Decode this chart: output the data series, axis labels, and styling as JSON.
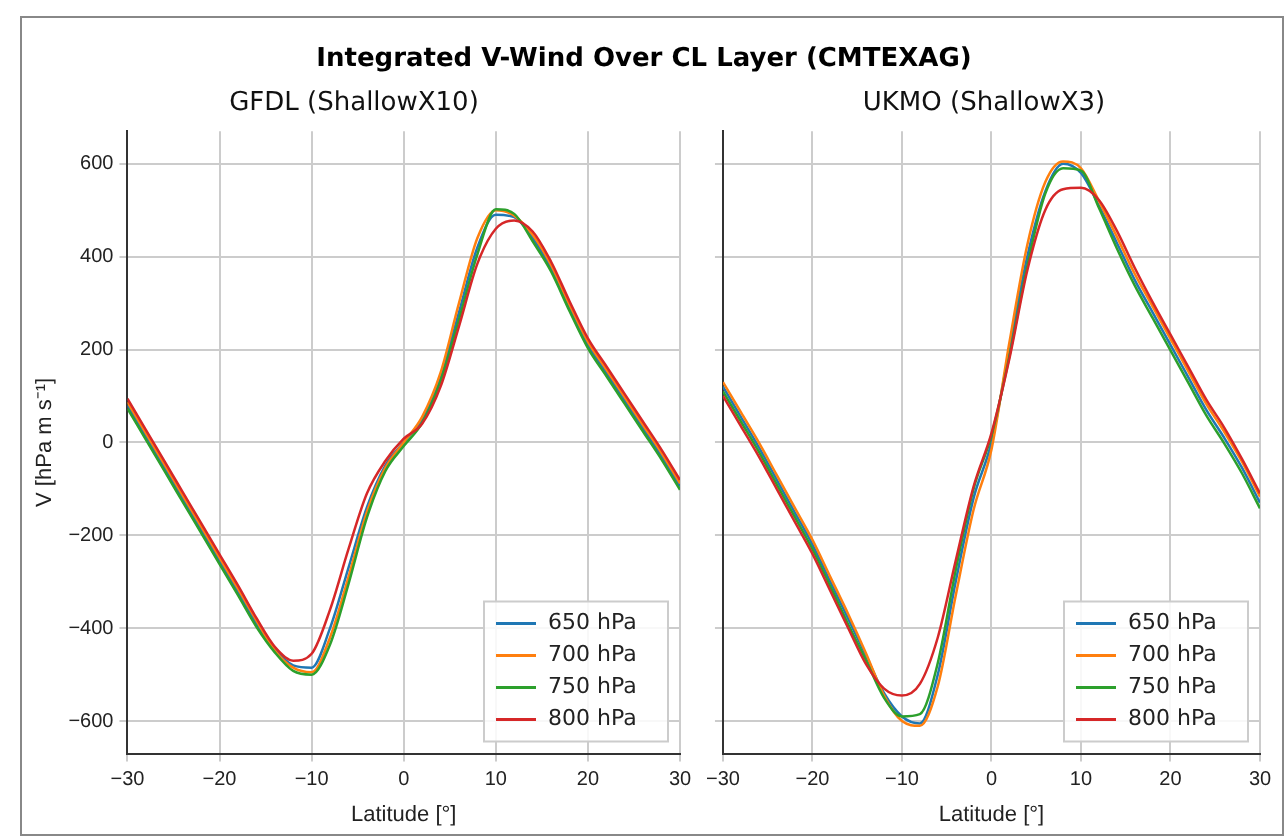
{
  "chart_data": [
    {
      "type": "line",
      "title": "GFDL (ShallowX10)",
      "annotations": [
        "Integrated V-Wind Over CL Layer (CMTEXAG)"
      ],
      "xlabel": "Latitude [°]",
      "ylabel": "V [hPa m s⁻¹]",
      "x": [
        -30,
        -28,
        -26,
        -24,
        -22,
        -20,
        -18,
        -16,
        -14,
        -12,
        -10,
        -8,
        -6,
        -4,
        -2,
        0,
        2,
        4,
        6,
        8,
        10,
        12,
        14,
        16,
        18,
        20,
        22,
        24,
        26,
        28,
        30
      ],
      "xlim": [
        -30,
        30
      ],
      "xticks": [
        -30,
        -20,
        -10,
        0,
        10,
        20,
        30
      ],
      "ylim": [
        -670,
        670
      ],
      "yticks": [
        -600,
        -400,
        -200,
        0,
        200,
        400,
        600
      ],
      "grid": true,
      "legend": "bottom right",
      "series": [
        {
          "name": "650 hPa",
          "color": "#1f77b4",
          "values": [
            80,
            13,
            -54,
            -121,
            -188,
            -255,
            -322,
            -390,
            -445,
            -480,
            -485,
            -400,
            -270,
            -140,
            -50,
            0,
            50,
            140,
            280,
            420,
            490,
            485,
            440,
            375,
            290,
            210,
            150,
            90,
            30,
            -30,
            -95
          ]
        },
        {
          "name": "700 hPa",
          "color": "#ff7f0e",
          "values": [
            87,
            20,
            -47,
            -114,
            -181,
            -248,
            -315,
            -383,
            -448,
            -485,
            -495,
            -420,
            -290,
            -150,
            -55,
            0,
            55,
            150,
            300,
            440,
            500,
            488,
            447,
            382,
            297,
            217,
            157,
            97,
            37,
            -23,
            -88
          ]
        },
        {
          "name": "750 hPa",
          "color": "#2ca02c",
          "values": [
            73,
            6,
            -61,
            -128,
            -195,
            -262,
            -329,
            -397,
            -452,
            -492,
            -500,
            -435,
            -305,
            -162,
            -62,
            -8,
            42,
            132,
            265,
            405,
            502,
            492,
            433,
            368,
            283,
            203,
            143,
            83,
            23,
            -37,
            -102
          ]
        },
        {
          "name": "800 hPa",
          "color": "#d62728",
          "values": [
            94,
            27,
            -40,
            -107,
            -174,
            -241,
            -308,
            -378,
            -440,
            -470,
            -455,
            -360,
            -230,
            -110,
            -40,
            8,
            40,
            120,
            250,
            385,
            460,
            478,
            454,
            389,
            304,
            224,
            164,
            104,
            44,
            -16,
            -81
          ]
        }
      ]
    },
    {
      "type": "line",
      "title": "UKMO (ShallowX3)",
      "xlabel": "Latitude [°]",
      "x": [
        -30,
        -28,
        -26,
        -24,
        -22,
        -20,
        -18,
        -16,
        -14,
        -12,
        -10,
        -8,
        -6,
        -4,
        -2,
        0,
        2,
        4,
        6,
        8,
        10,
        12,
        14,
        16,
        18,
        20,
        22,
        24,
        26,
        28,
        30
      ],
      "xlim": [
        -30,
        30
      ],
      "xticks": [
        -30,
        -20,
        -10,
        0,
        10,
        20,
        30
      ],
      "ylim": [
        -670,
        670
      ],
      "yticks": [
        -600,
        -400,
        -200,
        0,
        200,
        400,
        600
      ],
      "grid": true,
      "legend": "bottom right",
      "tick_labels": "x",
      "series": [
        {
          "name": "650 hPa",
          "color": "#1f77b4",
          "values": [
            120,
            55,
            -10,
            -80,
            -150,
            -220,
            -300,
            -380,
            -460,
            -540,
            -590,
            -605,
            -500,
            -300,
            -120,
            0,
            200,
            400,
            540,
            600,
            580,
            510,
            430,
            350,
            280,
            210,
            140,
            70,
            10,
            -55,
            -130
          ]
        },
        {
          "name": "700 hPa",
          "color": "#ff7f0e",
          "values": [
            130,
            65,
            0,
            -70,
            -140,
            -210,
            -290,
            -370,
            -455,
            -545,
            -600,
            -610,
            -525,
            -330,
            -145,
            -15,
            215,
            425,
            560,
            605,
            590,
            520,
            443,
            363,
            293,
            223,
            153,
            83,
            23,
            -42,
            -117
          ]
        },
        {
          "name": "750 hPa",
          "color": "#2ca02c",
          "values": [
            110,
            45,
            -20,
            -90,
            -160,
            -230,
            -310,
            -392,
            -470,
            -550,
            -590,
            -585,
            -475,
            -275,
            -100,
            15,
            185,
            380,
            535,
            590,
            585,
            505,
            418,
            338,
            268,
            198,
            128,
            58,
            -2,
            -67,
            -142
          ]
        },
        {
          "name": "800 hPa",
          "color": "#d62728",
          "values": [
            100,
            35,
            -30,
            -100,
            -170,
            -240,
            -320,
            -400,
            -478,
            -530,
            -545,
            -520,
            -420,
            -255,
            -95,
            20,
            180,
            370,
            500,
            545,
            548,
            522,
            456,
            376,
            302,
            232,
            162,
            92,
            32,
            -36,
            -110
          ]
        }
      ]
    }
  ]
}
